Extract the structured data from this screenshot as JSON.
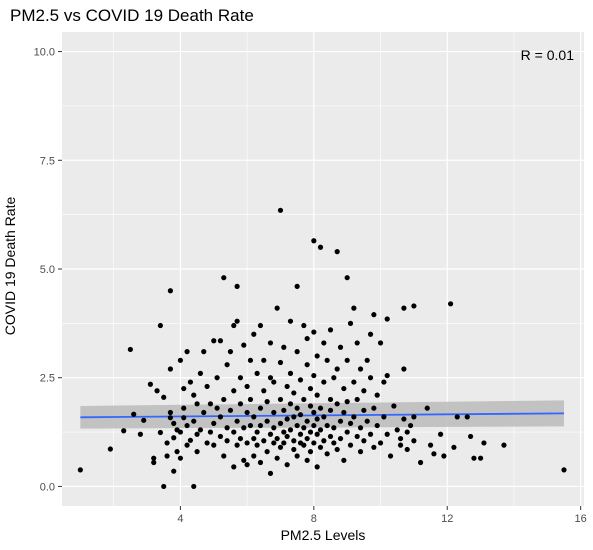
{
  "chart_data": {
    "type": "scatter",
    "title": "PM2.5 vs COVID 19 Death Rate",
    "xlabel": "PM2.5 Levels",
    "ylabel": "COVID 19 Death Rate",
    "xlim": [
      0.45,
      16.1
    ],
    "ylim": [
      -0.45,
      10.45
    ],
    "x_ticks": [
      4,
      8,
      12,
      16
    ],
    "y_ticks": [
      0.0,
      2.5,
      5.0,
      7.5,
      10.0
    ],
    "x_tick_labels": [
      "4",
      "8",
      "12",
      "16"
    ],
    "y_tick_labels": [
      "0.0",
      "2.5",
      "5.0",
      "7.5",
      "10.0"
    ],
    "annotation": "R =  0.01",
    "grid": true,
    "trend_line": {
      "type": "linear",
      "color": "#3366FF",
      "x_range": [
        1.0,
        15.5
      ],
      "y_start": 1.59,
      "y_end": 1.68,
      "ci_band_start": [
        1.33,
        1.85
      ],
      "ci_band_end": [
        1.38,
        1.98
      ],
      "ci_color": "#BEBEBE"
    },
    "points": [
      [
        1.0,
        0.38
      ],
      [
        1.9,
        0.86
      ],
      [
        2.3,
        1.28
      ],
      [
        2.5,
        3.15
      ],
      [
        2.6,
        1.66
      ],
      [
        2.8,
        1.2
      ],
      [
        2.9,
        1.52
      ],
      [
        3.1,
        2.35
      ],
      [
        3.2,
        0.65
      ],
      [
        3.2,
        0.55
      ],
      [
        3.3,
        2.2
      ],
      [
        3.4,
        1.24
      ],
      [
        3.4,
        3.7
      ],
      [
        3.5,
        0.0
      ],
      [
        3.5,
        2.05
      ],
      [
        3.6,
        1.0
      ],
      [
        3.6,
        0.7
      ],
      [
        3.7,
        4.5
      ],
      [
        3.7,
        1.7
      ],
      [
        3.7,
        1.58
      ],
      [
        3.7,
        2.7
      ],
      [
        3.8,
        1.12
      ],
      [
        3.8,
        0.35
      ],
      [
        3.8,
        1.45
      ],
      [
        3.9,
        0.8
      ],
      [
        3.9,
        1.3
      ],
      [
        4.0,
        2.9
      ],
      [
        4.0,
        0.65
      ],
      [
        4.0,
        1.25
      ],
      [
        4.1,
        1.8
      ],
      [
        4.1,
        1.58
      ],
      [
        4.1,
        2.25
      ],
      [
        4.2,
        3.1
      ],
      [
        4.2,
        0.95
      ],
      [
        4.2,
        1.4
      ],
      [
        4.3,
        2.4
      ],
      [
        4.3,
        1.06
      ],
      [
        4.4,
        0.0
      ],
      [
        4.4,
        1.5
      ],
      [
        4.4,
        2.1
      ],
      [
        4.5,
        1.2
      ],
      [
        4.5,
        1.9
      ],
      [
        4.5,
        0.8
      ],
      [
        4.6,
        1.3
      ],
      [
        4.6,
        2.6
      ],
      [
        4.7,
        1.7
      ],
      [
        4.7,
        3.1
      ],
      [
        4.8,
        1.0
      ],
      [
        4.8,
        2.3
      ],
      [
        4.9,
        1.25
      ],
      [
        4.9,
        1.9
      ],
      [
        5.0,
        3.35
      ],
      [
        5.0,
        0.95
      ],
      [
        5.0,
        1.45
      ],
      [
        5.1,
        2.5
      ],
      [
        5.1,
        1.8
      ],
      [
        5.2,
        3.35
      ],
      [
        5.2,
        1.15
      ],
      [
        5.2,
        1.6
      ],
      [
        5.3,
        4.8
      ],
      [
        5.3,
        0.7
      ],
      [
        5.3,
        2.0
      ],
      [
        5.4,
        1.35
      ],
      [
        5.4,
        2.8
      ],
      [
        5.4,
        1.05
      ],
      [
        5.5,
        3.1
      ],
      [
        5.5,
        1.75
      ],
      [
        5.6,
        3.7
      ],
      [
        5.6,
        1.25
      ],
      [
        5.6,
        2.2
      ],
      [
        5.6,
        0.45
      ],
      [
        5.7,
        3.8
      ],
      [
        5.7,
        4.6
      ],
      [
        5.7,
        1.5
      ],
      [
        5.7,
        0.95
      ],
      [
        5.8,
        2.5
      ],
      [
        5.8,
        1.9
      ],
      [
        5.8,
        1.1
      ],
      [
        5.9,
        3.25
      ],
      [
        5.9,
        1.35
      ],
      [
        5.9,
        0.6
      ],
      [
        6.0,
        1.7
      ],
      [
        6.0,
        2.3
      ],
      [
        6.0,
        1.0
      ],
      [
        6.0,
        0.5
      ],
      [
        6.1,
        2.9
      ],
      [
        6.1,
        1.4
      ],
      [
        6.1,
        2.0
      ],
      [
        6.2,
        1.1
      ],
      [
        6.2,
        3.5
      ],
      [
        6.2,
        0.7
      ],
      [
        6.2,
        1.6
      ],
      [
        6.3,
        2.6
      ],
      [
        6.3,
        1.25
      ],
      [
        6.3,
        0.95
      ],
      [
        6.4,
        3.7
      ],
      [
        6.4,
        1.8
      ],
      [
        6.4,
        1.4
      ],
      [
        6.4,
        0.55
      ],
      [
        6.5,
        2.2
      ],
      [
        6.5,
        1.05
      ],
      [
        6.5,
        2.9
      ],
      [
        6.6,
        1.5
      ],
      [
        6.6,
        0.8
      ],
      [
        6.6,
        1.95
      ],
      [
        6.7,
        1.2
      ],
      [
        6.7,
        3.3
      ],
      [
        6.7,
        2.5
      ],
      [
        6.7,
        0.3
      ],
      [
        6.8,
        1.0
      ],
      [
        6.8,
        1.7
      ],
      [
        6.8,
        2.4
      ],
      [
        6.8,
        1.35
      ],
      [
        6.9,
        4.1
      ],
      [
        6.9,
        1.1
      ],
      [
        6.9,
        0.65
      ],
      [
        7.0,
        6.35
      ],
      [
        7.0,
        2.0
      ],
      [
        7.0,
        1.45
      ],
      [
        7.0,
        2.85
      ],
      [
        7.0,
        0.9
      ],
      [
        7.1,
        1.25
      ],
      [
        7.1,
        1.75
      ],
      [
        7.1,
        3.2
      ],
      [
        7.1,
        1.0
      ],
      [
        7.2,
        2.3
      ],
      [
        7.2,
        1.55
      ],
      [
        7.2,
        0.5
      ],
      [
        7.2,
        1.15
      ],
      [
        7.3,
        3.8
      ],
      [
        7.3,
        1.9
      ],
      [
        7.3,
        1.3
      ],
      [
        7.3,
        2.6
      ],
      [
        7.4,
        0.85
      ],
      [
        7.4,
        1.6
      ],
      [
        7.4,
        2.15
      ],
      [
        7.4,
        1.05
      ],
      [
        7.5,
        4.6
      ],
      [
        7.5,
        1.4
      ],
      [
        7.5,
        3.1
      ],
      [
        7.5,
        0.7
      ],
      [
        7.5,
        1.8
      ],
      [
        7.6,
        1.2
      ],
      [
        7.6,
        2.45
      ],
      [
        7.6,
        1.0
      ],
      [
        7.6,
        1.65
      ],
      [
        7.7,
        3.7
      ],
      [
        7.7,
        2.0
      ],
      [
        7.7,
        1.35
      ],
      [
        7.7,
        0.95
      ],
      [
        7.8,
        3.4
      ],
      [
        7.8,
        1.5
      ],
      [
        7.8,
        2.8
      ],
      [
        7.8,
        1.1
      ],
      [
        7.8,
        0.6
      ],
      [
        7.9,
        1.85
      ],
      [
        7.9,
        1.25
      ],
      [
        7.9,
        2.25
      ],
      [
        7.9,
        0.8
      ],
      [
        8.0,
        5.65
      ],
      [
        8.0,
        3.55
      ],
      [
        8.0,
        1.4
      ],
      [
        8.0,
        1.0
      ],
      [
        8.0,
        1.7
      ],
      [
        8.0,
        2.55
      ],
      [
        8.1,
        1.2
      ],
      [
        8.1,
        3.0
      ],
      [
        8.1,
        1.55
      ],
      [
        8.1,
        0.45
      ],
      [
        8.1,
        2.1
      ],
      [
        8.2,
        5.5
      ],
      [
        8.2,
        1.3
      ],
      [
        8.2,
        1.8
      ],
      [
        8.2,
        0.9
      ],
      [
        8.3,
        3.3
      ],
      [
        8.3,
        2.4
      ],
      [
        8.3,
        1.05
      ],
      [
        8.3,
        1.6
      ],
      [
        8.4,
        2.9
      ],
      [
        8.4,
        1.4
      ],
      [
        8.4,
        0.75
      ],
      [
        8.5,
        2.0
      ],
      [
        8.5,
        1.15
      ],
      [
        8.5,
        3.6
      ],
      [
        8.5,
        1.75
      ],
      [
        8.6,
        1.0
      ],
      [
        8.6,
        2.5
      ],
      [
        8.6,
        1.35
      ],
      [
        8.7,
        5.4
      ],
      [
        8.7,
        1.9
      ],
      [
        8.7,
        0.85
      ],
      [
        8.7,
        2.7
      ],
      [
        8.8,
        1.5
      ],
      [
        8.8,
        3.2
      ],
      [
        8.8,
        1.1
      ],
      [
        8.9,
        2.25
      ],
      [
        8.9,
        1.7
      ],
      [
        8.9,
        0.6
      ],
      [
        9.0,
        4.8
      ],
      [
        9.0,
        2.9
      ],
      [
        9.0,
        1.25
      ],
      [
        9.0,
        1.95
      ],
      [
        9.1,
        3.75
      ],
      [
        9.1,
        1.45
      ],
      [
        9.1,
        0.95
      ],
      [
        9.2,
        4.1
      ],
      [
        9.2,
        2.4
      ],
      [
        9.2,
        1.6
      ],
      [
        9.3,
        3.3
      ],
      [
        9.3,
        1.15
      ],
      [
        9.3,
        2.0
      ],
      [
        9.4,
        2.7
      ],
      [
        9.4,
        1.35
      ],
      [
        9.4,
        0.8
      ],
      [
        9.5,
        2.2
      ],
      [
        9.5,
        1.75
      ],
      [
        9.5,
        1.05
      ],
      [
        9.6,
        2.9
      ],
      [
        9.6,
        1.5
      ],
      [
        9.7,
        3.5
      ],
      [
        9.7,
        1.2
      ],
      [
        9.7,
        2.5
      ],
      [
        9.8,
        3.95
      ],
      [
        9.8,
        1.8
      ],
      [
        9.8,
        0.9
      ],
      [
        9.9,
        2.1
      ],
      [
        9.9,
        1.4
      ],
      [
        10.0,
        3.3
      ],
      [
        10.0,
        1.0
      ],
      [
        10.1,
        2.4
      ],
      [
        10.1,
        1.6
      ],
      [
        10.2,
        2.55
      ],
      [
        10.2,
        1.2
      ],
      [
        10.2,
        3.85
      ],
      [
        10.3,
        0.7
      ],
      [
        10.4,
        1.85
      ],
      [
        10.5,
        1.3
      ],
      [
        10.6,
        1.1
      ],
      [
        10.6,
        0.95
      ],
      [
        10.7,
        1.55
      ],
      [
        10.7,
        4.1
      ],
      [
        10.7,
        2.7
      ],
      [
        10.8,
        1.25
      ],
      [
        10.8,
        0.85
      ],
      [
        10.9,
        1.4
      ],
      [
        11.0,
        4.15
      ],
      [
        11.0,
        1.05
      ],
      [
        11.0,
        1.6
      ],
      [
        11.2,
        0.55
      ],
      [
        11.4,
        1.8
      ],
      [
        11.5,
        0.95
      ],
      [
        11.6,
        0.75
      ],
      [
        11.8,
        1.2
      ],
      [
        11.9,
        0.7
      ],
      [
        12.1,
        4.2
      ],
      [
        12.2,
        0.9
      ],
      [
        12.3,
        1.6
      ],
      [
        12.6,
        1.6
      ],
      [
        12.7,
        1.15
      ],
      [
        12.8,
        0.65
      ],
      [
        13.0,
        0.65
      ],
      [
        13.1,
        1.0
      ],
      [
        13.7,
        0.95
      ],
      [
        15.5,
        0.38
      ]
    ]
  }
}
